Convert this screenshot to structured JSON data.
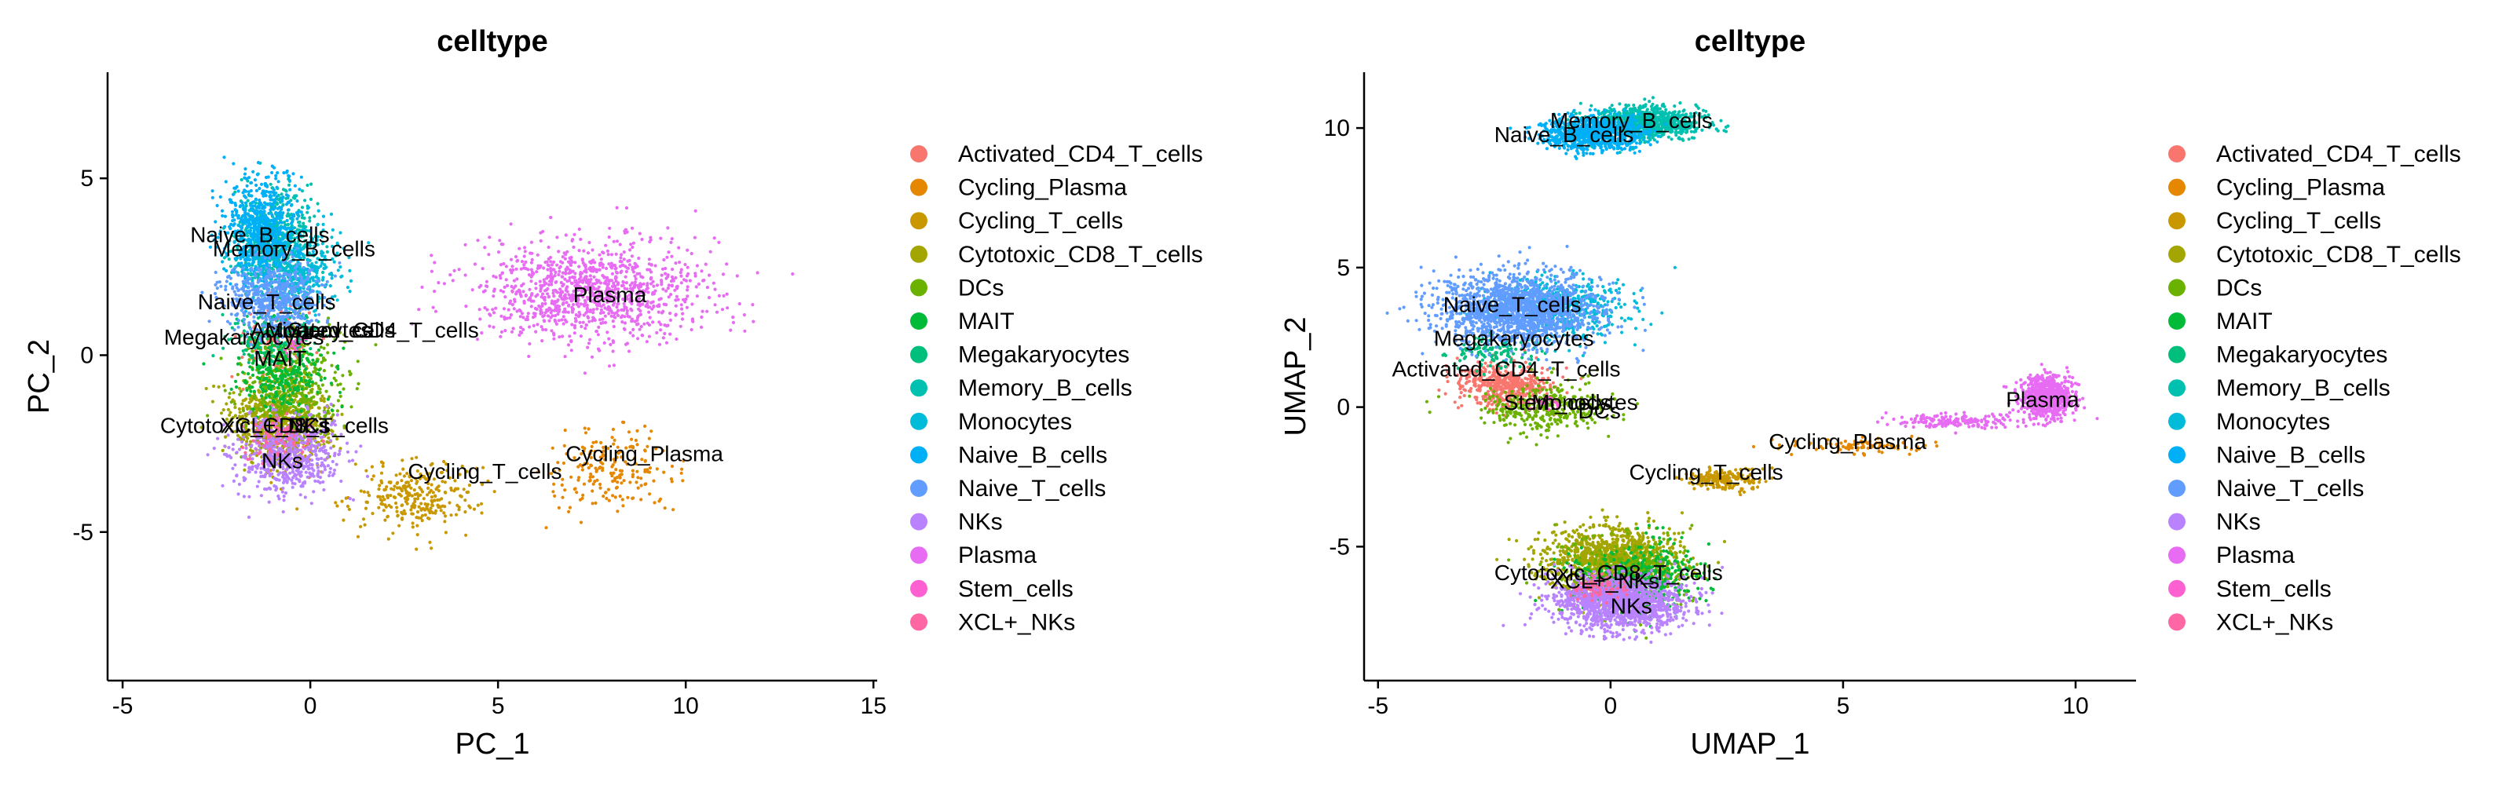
{
  "chart_data": [
    {
      "type": "scatter",
      "title": "celltype",
      "xlabel": "PC_1",
      "ylabel": "PC_2",
      "xlim": [
        -5.4,
        15.1
      ],
      "ylim": [
        -9.2,
        8.0
      ],
      "xticks": [
        -5,
        0,
        5,
        10,
        15
      ],
      "yticks": [
        -5,
        0,
        5
      ],
      "legend_placement": "right",
      "grid": false,
      "series": [
        {
          "name": "Activated_CD4_T_cells",
          "color": "#F8766D",
          "label": "Activated_CD4_T_cells",
          "label_pos": [
            -1.6,
            0.5
          ],
          "clusters": [
            {
              "center": [
                -0.8,
                0.4
              ],
              "spread": [
                0.9,
                0.9
              ],
              "count": 160
            }
          ]
        },
        {
          "name": "Cycling_Plasma",
          "color": "#E58700",
          "label": "Cycling_Plasma",
          "label_pos": [
            6.8,
            -3.0
          ],
          "clusters": [
            {
              "center": [
                8.0,
                -3.3
              ],
              "spread": [
                1.6,
                1.0
              ],
              "count": 200
            }
          ]
        },
        {
          "name": "Cycling_T_cells",
          "color": "#C99800",
          "label": "Cycling_T_cells",
          "label_pos": [
            2.6,
            -3.5
          ],
          "clusters": [
            {
              "center": [
                2.8,
                -4.0
              ],
              "spread": [
                1.5,
                0.9
              ],
              "count": 280
            },
            {
              "center": [
                -0.5,
                -2.5
              ],
              "spread": [
                1.0,
                1.0
              ],
              "count": 80
            }
          ]
        },
        {
          "name": "Cytotoxic_CD8_T_cells",
          "color": "#A3A500",
          "label": "Cytotoxic_CD8_T_cells",
          "label_pos": [
            -4.0,
            -2.2
          ],
          "clusters": [
            {
              "center": [
                -0.8,
                -1.8
              ],
              "spread": [
                1.2,
                1.0
              ],
              "count": 700
            }
          ]
        },
        {
          "name": "DCs",
          "color": "#6BB100",
          "label": "",
          "clusters": [
            {
              "center": [
                -0.5,
                -0.8
              ],
              "spread": [
                1.3,
                1.4
              ],
              "count": 400
            }
          ]
        },
        {
          "name": "MAIT",
          "color": "#00BA38",
          "label": "MAIT",
          "label_pos": [
            -1.5,
            -0.3
          ],
          "clusters": [
            {
              "center": [
                -0.8,
                -0.5
              ],
              "spread": [
                1.0,
                0.9
              ],
              "count": 300
            }
          ]
        },
        {
          "name": "Megakaryocytes",
          "color": "#00BF7D",
          "label": "Megakaryocytes",
          "label_pos": [
            -3.9,
            0.3
          ],
          "clusters": [
            {
              "center": [
                -0.9,
                0.6
              ],
              "spread": [
                1.1,
                0.8
              ],
              "count": 150
            }
          ]
        },
        {
          "name": "Memory_B_cells",
          "color": "#00C0AF",
          "label": "Memory_B_cells",
          "label_pos": [
            -2.6,
            2.8
          ],
          "clusters": [
            {
              "center": [
                -1.0,
                3.2
              ],
              "spread": [
                0.9,
                1.3
              ],
              "count": 650
            }
          ]
        },
        {
          "name": "Monocytes",
          "color": "#00BCD8",
          "label": "",
          "clusters": [
            {
              "center": [
                -0.3,
                2.3
              ],
              "spread": [
                1.1,
                1.1
              ],
              "count": 350
            }
          ]
        },
        {
          "name": "Naive_B_cells",
          "color": "#00B0F6",
          "label": "Naive_B_cells",
          "label_pos": [
            -3.2,
            3.2
          ],
          "clusters": [
            {
              "center": [
                -1.3,
                3.5
              ],
              "spread": [
                0.9,
                1.3
              ],
              "count": 700
            }
          ]
        },
        {
          "name": "Naive_T_cells",
          "color": "#619CFF",
          "label": "Naive_T_cells",
          "label_pos": [
            -3.0,
            1.3
          ],
          "clusters": [
            {
              "center": [
                -1.0,
                1.6
              ],
              "spread": [
                1.1,
                0.9
              ],
              "count": 600
            }
          ]
        },
        {
          "name": "NKs",
          "color": "#B983FF",
          "label": "NKs",
          "label_pos": [
            -1.3,
            -3.2
          ],
          "clusters": [
            {
              "center": [
                -0.6,
                -2.8
              ],
              "spread": [
                1.3,
                1.0
              ],
              "count": 600
            }
          ]
        },
        {
          "name": "Plasma",
          "color": "#E76BF3",
          "label": "Plasma",
          "label_pos": [
            7.0,
            1.5
          ],
          "clusters": [
            {
              "center": [
                7.5,
                1.8
              ],
              "spread": [
                2.8,
                1.3
              ],
              "count": 1100
            }
          ]
        },
        {
          "name": "Stem_cells",
          "color": "#FD61D1",
          "label": "",
          "clusters": [
            {
              "center": [
                -0.5,
                0.3
              ],
              "spread": [
                0.4,
                0.3
              ],
              "count": 20
            }
          ]
        },
        {
          "name": "XCL+_NKs",
          "color": "#FF67A4",
          "label": "XCL+_NKs",
          "label_pos": [
            -2.4,
            -2.2
          ],
          "clusters": [
            {
              "center": [
                -0.8,
                -2.3
              ],
              "spread": [
                0.8,
                0.6
              ],
              "count": 80
            }
          ]
        }
      ],
      "extra_labels": [
        {
          "text": "Monocytes",
          "pos": [
            -1.2,
            0.5
          ]
        },
        {
          "text": "Stem_cells",
          "pos": [
            -0.6,
            0.5
          ]
        },
        {
          "text": "DCs",
          "pos": [
            -0.6,
            -2.2
          ]
        }
      ]
    },
    {
      "type": "scatter",
      "title": "celltype",
      "xlabel": "UMAP_1",
      "ylabel": "UMAP_2",
      "xlim": [
        -5.3,
        11.3
      ],
      "ylim": [
        -9.8,
        12.0
      ],
      "xticks": [
        -5,
        0,
        5,
        10
      ],
      "yticks": [
        -5,
        0,
        5,
        10
      ],
      "legend_placement": "right",
      "grid": false,
      "series": [
        {
          "name": "Activated_CD4_T_cells",
          "color": "#F8766D",
          "label": "Activated_CD4_T_cells",
          "label_pos": [
            -4.7,
            1.1
          ],
          "clusters": [
            {
              "center": [
                -2.3,
                0.8
              ],
              "spread": [
                0.9,
                0.7
              ],
              "count": 500
            }
          ]
        },
        {
          "name": "Cycling_Plasma",
          "color": "#E58700",
          "label": "Cycling_Plasma",
          "label_pos": [
            3.4,
            -1.5
          ],
          "clusters": [
            {
              "center": [
                5.5,
                -1.4
              ],
              "spread": [
                1.3,
                0.25
              ],
              "count": 90
            }
          ]
        },
        {
          "name": "Cycling_T_cells",
          "color": "#C99800",
          "label": "Cycling_T_cells",
          "label_pos": [
            0.4,
            -2.6
          ],
          "clusters": [
            {
              "center": [
                2.4,
                -2.6
              ],
              "spread": [
                0.7,
                0.35
              ],
              "count": 200
            }
          ]
        },
        {
          "name": "Cytotoxic_CD8_T_cells",
          "color": "#A3A500",
          "label": "Cytotoxic_CD8_T_cells",
          "label_pos": [
            -2.5,
            -6.2
          ],
          "clusters": [
            {
              "center": [
                0.0,
                -5.5
              ],
              "spread": [
                1.3,
                1.1
              ],
              "count": 1200
            }
          ]
        },
        {
          "name": "DCs",
          "color": "#6BB100",
          "label": "",
          "clusters": [
            {
              "center": [
                -1.5,
                0.0
              ],
              "spread": [
                1.2,
                0.8
              ],
              "count": 350
            },
            {
              "center": [
                0.5,
                -6.0
              ],
              "spread": [
                1.3,
                1.2
              ],
              "count": 300
            }
          ]
        },
        {
          "name": "MAIT",
          "color": "#00BA38",
          "label": "",
          "clusters": [
            {
              "center": [
                0.6,
                -6.2
              ],
              "spread": [
                1.2,
                1.1
              ],
              "count": 450
            }
          ]
        },
        {
          "name": "Megakaryocytes",
          "color": "#00BF7D",
          "label": "Megakaryocytes",
          "label_pos": [
            -3.8,
            2.2
          ],
          "clusters": [
            {
              "center": [
                -2.5,
                2.0
              ],
              "spread": [
                0.8,
                0.6
              ],
              "count": 120
            }
          ]
        },
        {
          "name": "Memory_B_cells",
          "color": "#00C0AF",
          "label": "Memory_B_cells",
          "label_pos": [
            -1.3,
            10.0
          ],
          "clusters": [
            {
              "center": [
                0.7,
                10.2
              ],
              "spread": [
                1.1,
                0.55
              ],
              "count": 900
            }
          ]
        },
        {
          "name": "Monocytes",
          "color": "#00BCD8",
          "label": "",
          "clusters": [
            {
              "center": [
                -1.0,
                3.6
              ],
              "spread": [
                1.3,
                1.0
              ],
              "count": 450
            }
          ]
        },
        {
          "name": "Naive_B_cells",
          "color": "#00B0F6",
          "label": "Naive_B_cells",
          "label_pos": [
            -2.5,
            9.5
          ],
          "clusters": [
            {
              "center": [
                -0.4,
                9.8
              ],
              "spread": [
                1.0,
                0.6
              ],
              "count": 800
            }
          ]
        },
        {
          "name": "Naive_T_cells",
          "color": "#619CFF",
          "label": "Naive_T_cells",
          "label_pos": [
            -3.6,
            3.4
          ],
          "clusters": [
            {
              "center": [
                -2.0,
                3.5
              ],
              "spread": [
                1.5,
                1.2
              ],
              "count": 1600
            }
          ]
        },
        {
          "name": "NKs",
          "color": "#B983FF",
          "label": "NKs",
          "label_pos": [
            0.0,
            -7.4
          ],
          "clusters": [
            {
              "center": [
                0.2,
                -7.0
              ],
              "spread": [
                1.3,
                0.9
              ],
              "count": 1300
            }
          ]
        },
        {
          "name": "Plasma",
          "color": "#E76BF3",
          "label": "Plasma",
          "label_pos": [
            8.5,
            0.0
          ],
          "clusters": [
            {
              "center": [
                9.4,
                0.4
              ],
              "spread": [
                0.5,
                0.7
              ],
              "count": 700
            },
            {
              "center": [
                7.5,
                -0.5
              ],
              "spread": [
                1.2,
                0.25
              ],
              "count": 180
            }
          ]
        },
        {
          "name": "Stem_cells",
          "color": "#FD61D1",
          "label": "Stem_cells",
          "label_pos": [
            -2.3,
            -0.1
          ],
          "clusters": [
            {
              "center": [
                -1.4,
                0.2
              ],
              "spread": [
                0.3,
                0.25
              ],
              "count": 20
            }
          ]
        },
        {
          "name": "XCL+_NKs",
          "color": "#FF67A4",
          "label": "XCL+_NKs",
          "label_pos": [
            -1.3,
            -6.5
          ],
          "clusters": [
            {
              "center": [
                -0.2,
                -6.5
              ],
              "spread": [
                0.6,
                0.4
              ],
              "count": 80
            }
          ]
        }
      ],
      "extra_labels": [
        {
          "text": "Monocytes",
          "pos": [
            -1.7,
            -0.1
          ]
        },
        {
          "text": "DCs",
          "pos": [
            -0.7,
            -0.4
          ]
        }
      ]
    }
  ]
}
